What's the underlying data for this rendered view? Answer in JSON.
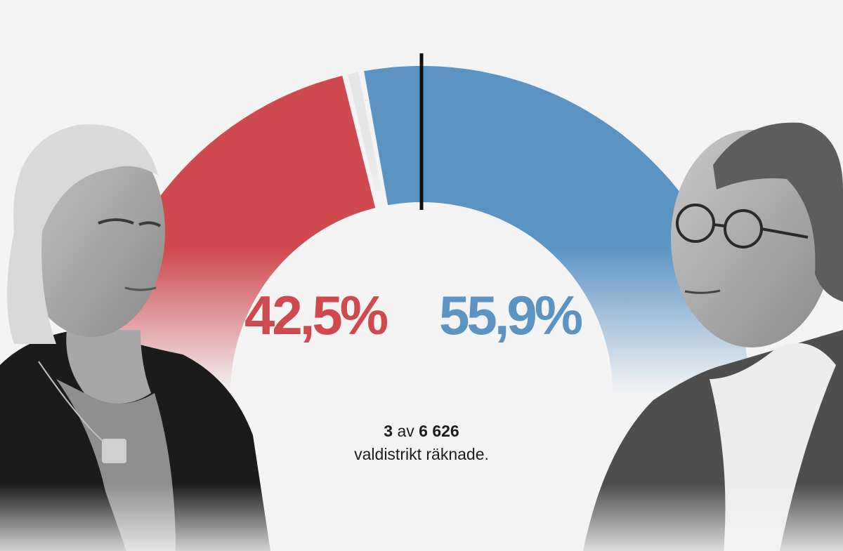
{
  "colors": {
    "left_bloc": "#cf4a4f",
    "right_bloc": "#5b93c2",
    "other": "#e6e6e8",
    "majority_line": "#111111",
    "background": "#f4f4f5"
  },
  "chart_data": {
    "type": "pie",
    "subtype": "semicircle-gauge",
    "series": [
      {
        "name": "",
        "value": 42.5,
        "label": "42,5%",
        "color": "#cf4a4f"
      },
      {
        "name": "",
        "value": 1.6,
        "label": "",
        "color": "#e6e6e8"
      },
      {
        "name": "",
        "value": 55.9,
        "label": "55,9%",
        "color": "#5b93c2"
      }
    ],
    "majority_marker": 50,
    "title": "",
    "legend": "none"
  },
  "labels": {
    "left_percent": "42,5%",
    "right_percent": "55,9%"
  },
  "count": {
    "counted": "3",
    "word_of": "av",
    "total": "6 626",
    "caption": "valdistrikt räknade."
  }
}
